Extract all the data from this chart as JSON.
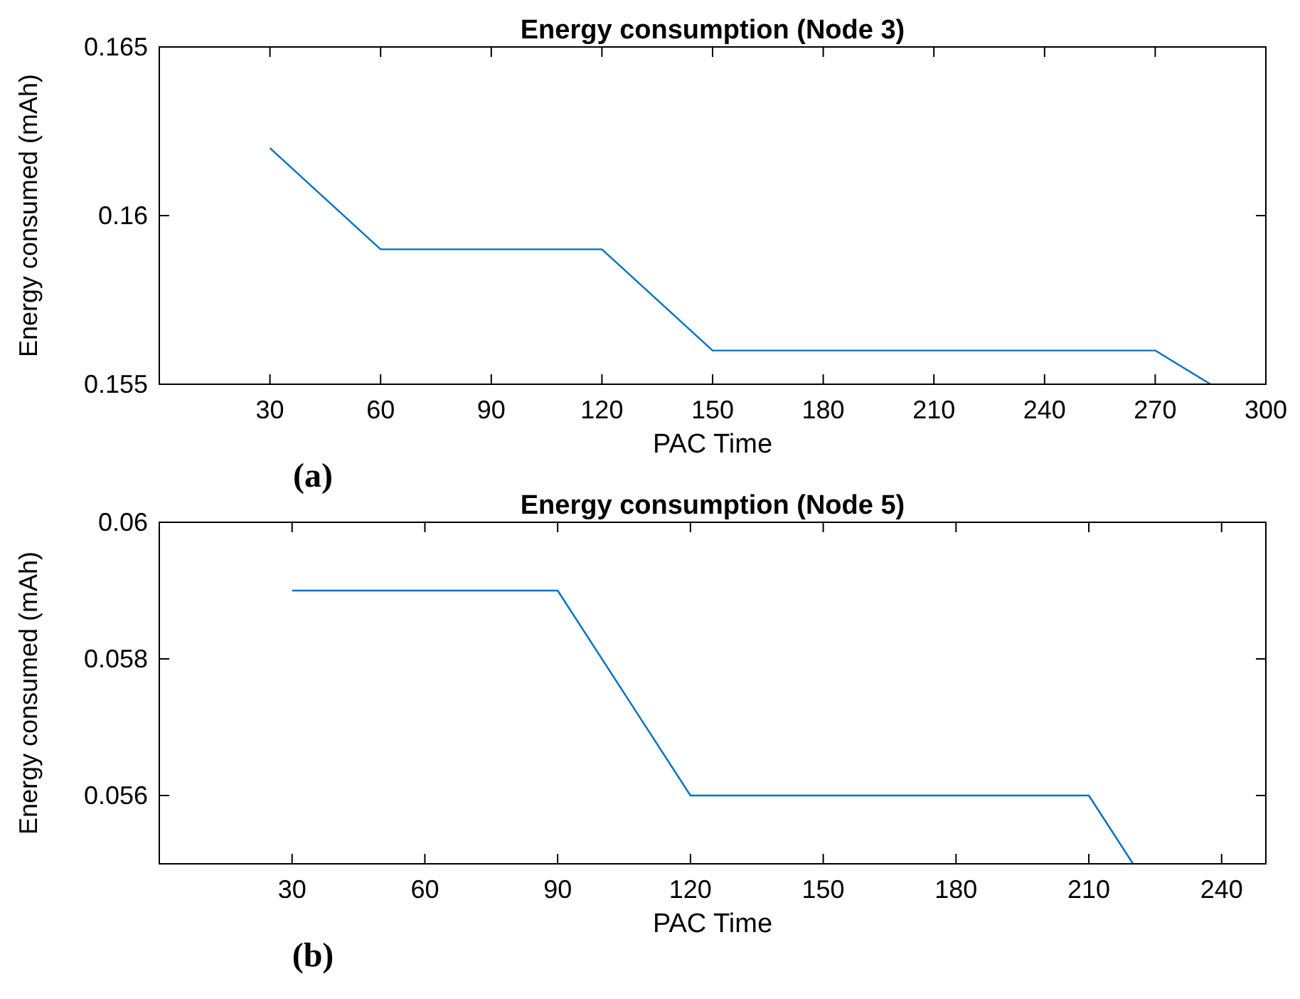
{
  "chart_data": [
    {
      "type": "line",
      "title": "Energy consumption (Node 3)",
      "xlabel": "PAC Time",
      "ylabel": "Energy consumed (mAh)",
      "annotations": [
        "(a)"
      ],
      "x": [
        30,
        60,
        120,
        150,
        270,
        285
      ],
      "series": [
        {
          "color": "#0072bd",
          "values": [
            0.162,
            0.159,
            0.159,
            0.156,
            0.156,
            0.155
          ]
        }
      ],
      "xlim": [
        0,
        300
      ],
      "xticks": [
        30,
        60,
        90,
        120,
        150,
        180,
        210,
        240,
        270,
        300
      ],
      "ylim": [
        0.155,
        0.165
      ],
      "yticks": [
        0.155,
        0.16,
        0.165
      ],
      "grid": false,
      "marker": "none",
      "line_style": "solid"
    },
    {
      "type": "line",
      "title": "Energy consumption (Node 5)",
      "xlabel": "PAC Time",
      "ylabel": "Energy consumed (mAh)",
      "annotations": [
        "(b)"
      ],
      "x": [
        30,
        90,
        120,
        210,
        220
      ],
      "series": [
        {
          "color": "#0072bd",
          "values": [
            0.059,
            0.059,
            0.056,
            0.056,
            0.055
          ]
        }
      ],
      "xlim": [
        0,
        250
      ],
      "xticks": [
        30,
        60,
        90,
        120,
        150,
        180,
        210,
        240
      ],
      "ylim": [
        0.055,
        0.06
      ],
      "yticks": [
        0.056,
        0.058,
        0.06
      ],
      "grid": false,
      "marker": "none",
      "line_style": "solid"
    }
  ]
}
